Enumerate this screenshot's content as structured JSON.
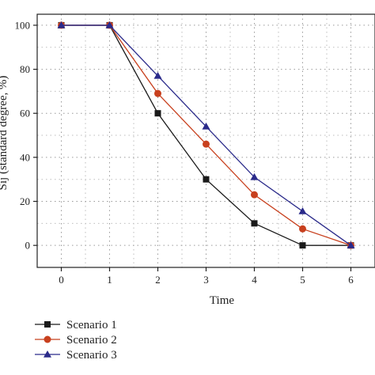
{
  "chart_data": {
    "type": "line",
    "xlabel": "Time",
    "ylabel": "Sij (standard degree, %)",
    "xlim": [
      -0.5,
      6.5
    ],
    "ylim": [
      -10,
      105
    ],
    "x_ticks": [
      0,
      1,
      2,
      3,
      4,
      5,
      6
    ],
    "y_ticks": [
      0,
      20,
      40,
      60,
      80,
      100
    ],
    "grid": true,
    "legend_position": "bottom-left",
    "x": [
      0,
      1,
      2,
      3,
      4,
      5,
      6
    ],
    "series": [
      {
        "name": "Scenario 1",
        "values": [
          100,
          100,
          60,
          30,
          10,
          0,
          0
        ],
        "color": "#1a1a1a",
        "marker": "square"
      },
      {
        "name": "Scenario 2",
        "values": [
          100,
          100,
          69,
          46,
          23,
          7.5,
          0
        ],
        "color": "#c8401e",
        "marker": "circle"
      },
      {
        "name": "Scenario 3",
        "values": [
          100,
          100,
          77,
          54,
          31,
          15.5,
          0
        ],
        "color": "#2a2a8a",
        "marker": "triangle"
      }
    ]
  }
}
